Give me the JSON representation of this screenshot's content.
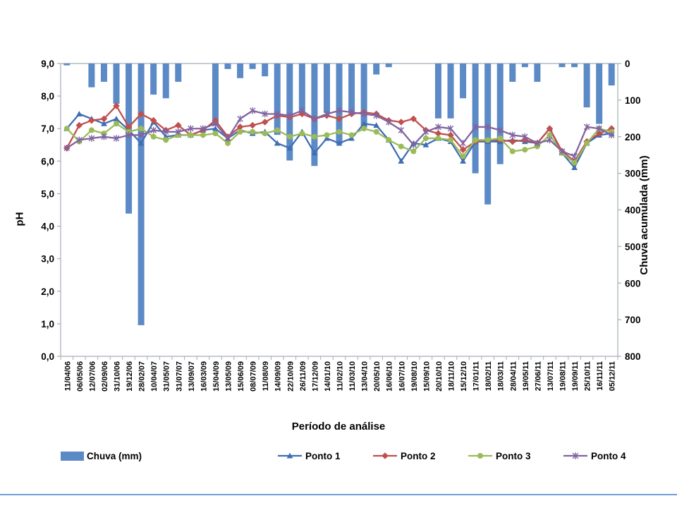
{
  "slide": {
    "background": "#FFFFFF",
    "bottom_rule_color": "#6FA0D6"
  },
  "chart_data": {
    "type": "combo-bar-line",
    "title": "",
    "grid": "off",
    "legend_position": "bottom",
    "x_axis": {
      "title": "Período de análise",
      "categories": [
        "11/04/06",
        "06/05/06",
        "12/07/06",
        "02/09/06",
        "31/10/06",
        "19/12/06",
        "28/02/07",
        "10/04/07",
        "31/05/07",
        "31/07/07",
        "13/09/07",
        "16/03/09",
        "15/04/09",
        "13/05/09",
        "15/06/09",
        "08/07/09",
        "11/08/09",
        "14/09/09",
        "22/10/09",
        "26/11/09",
        "17/12/09",
        "14/01/10",
        "11/02/10",
        "11/03/10",
        "13/04/10",
        "20/05/10",
        "16/06/10",
        "16/07/10",
        "19/08/10",
        "15/09/10",
        "20/10/10",
        "18/11/10",
        "15/12/10",
        "17/01/11",
        "18/02/11",
        "18/03/11",
        "28/04/11",
        "19/05/11",
        "27/06/11",
        "13/07/11",
        "19/08/11",
        "19/09/11",
        "25/10/11",
        "16/11/11",
        "05/12/11"
      ]
    },
    "y_left": {
      "title": "pH",
      "min": 0,
      "max": 9,
      "tick_labels": [
        "0,0",
        "1,0",
        "2,0",
        "3,0",
        "4,0",
        "5,0",
        "6,0",
        "7,0",
        "8,0",
        "9,0"
      ]
    },
    "y_right": {
      "title": "Chuva acumulada (mm)",
      "min": 0,
      "max": 800,
      "inverted": true,
      "tick_labels": [
        "0",
        "100",
        "200",
        "300",
        "400",
        "500",
        "600",
        "700",
        "800"
      ]
    },
    "series": [
      {
        "name": "Chuva (mm)",
        "type": "bar",
        "axis": "right",
        "color": "#5B8AC6",
        "values": [
          5,
          0,
          65,
          50,
          110,
          410,
          715,
          85,
          95,
          50,
          0,
          0,
          170,
          15,
          40,
          15,
          35,
          195,
          265,
          140,
          280,
          135,
          220,
          135,
          175,
          30,
          10,
          0,
          0,
          0,
          150,
          150,
          95,
          300,
          385,
          275,
          50,
          10,
          50,
          0,
          10,
          10,
          120,
          165,
          60
        ]
      },
      {
        "name": "Ponto 1",
        "type": "line",
        "axis": "left",
        "marker": "triangle",
        "color": "#3F6EB5",
        "values": [
          7.0,
          7.45,
          7.3,
          7.15,
          7.3,
          6.95,
          6.55,
          7.2,
          6.75,
          6.8,
          6.8,
          6.95,
          7.0,
          6.7,
          6.95,
          6.85,
          6.9,
          6.55,
          6.4,
          6.9,
          6.25,
          6.7,
          6.55,
          6.7,
          7.15,
          7.1,
          6.65,
          6.0,
          6.55,
          6.5,
          6.7,
          6.6,
          6.0,
          6.6,
          6.6,
          6.6,
          6.65,
          6.6,
          6.55,
          7.0,
          6.25,
          5.8,
          6.55,
          6.8,
          6.85
        ]
      },
      {
        "name": "Ponto 2",
        "type": "line",
        "axis": "left",
        "marker": "diamond",
        "color": "#C0504D",
        "values": [
          6.4,
          7.1,
          7.25,
          7.3,
          7.7,
          7.05,
          7.45,
          7.25,
          6.95,
          7.1,
          6.8,
          6.95,
          7.25,
          6.75,
          7.05,
          7.1,
          7.2,
          7.4,
          7.35,
          7.45,
          7.3,
          7.4,
          7.3,
          7.45,
          7.5,
          7.45,
          7.25,
          7.2,
          7.3,
          6.95,
          6.85,
          6.8,
          6.35,
          6.6,
          6.65,
          6.65,
          6.6,
          6.65,
          6.55,
          7.0,
          6.3,
          6.0,
          6.6,
          6.85,
          7.0
        ]
      },
      {
        "name": "Ponto 3",
        "type": "line",
        "axis": "left",
        "marker": "circle",
        "color": "#9BBB59",
        "values": [
          7.0,
          6.6,
          6.95,
          6.85,
          7.15,
          6.9,
          7.0,
          6.75,
          6.65,
          6.8,
          6.8,
          6.8,
          6.85,
          6.55,
          6.9,
          6.9,
          6.85,
          6.95,
          6.75,
          6.85,
          6.75,
          6.8,
          6.9,
          6.8,
          7.0,
          6.9,
          6.65,
          6.45,
          6.3,
          6.7,
          6.7,
          6.65,
          6.15,
          6.65,
          6.65,
          6.7,
          6.3,
          6.35,
          6.45,
          6.8,
          6.25,
          5.95,
          6.55,
          7.0,
          6.9
        ]
      },
      {
        "name": "Ponto 4",
        "type": "line",
        "axis": "left",
        "marker": "asterisk",
        "color": "#8064A2",
        "values": [
          6.4,
          6.65,
          6.7,
          6.75,
          6.7,
          6.8,
          6.8,
          6.95,
          6.9,
          6.9,
          7.0,
          7.0,
          7.15,
          6.7,
          7.3,
          7.55,
          7.45,
          7.45,
          7.4,
          7.55,
          7.3,
          7.45,
          7.55,
          7.5,
          7.45,
          7.4,
          7.2,
          6.95,
          6.5,
          6.9,
          7.05,
          7.0,
          6.55,
          7.05,
          7.05,
          6.95,
          6.8,
          6.75,
          6.55,
          6.65,
          6.3,
          6.15,
          7.05,
          7.0,
          6.8
        ]
      }
    ],
    "axis_line_color": "#A3AEB8"
  }
}
